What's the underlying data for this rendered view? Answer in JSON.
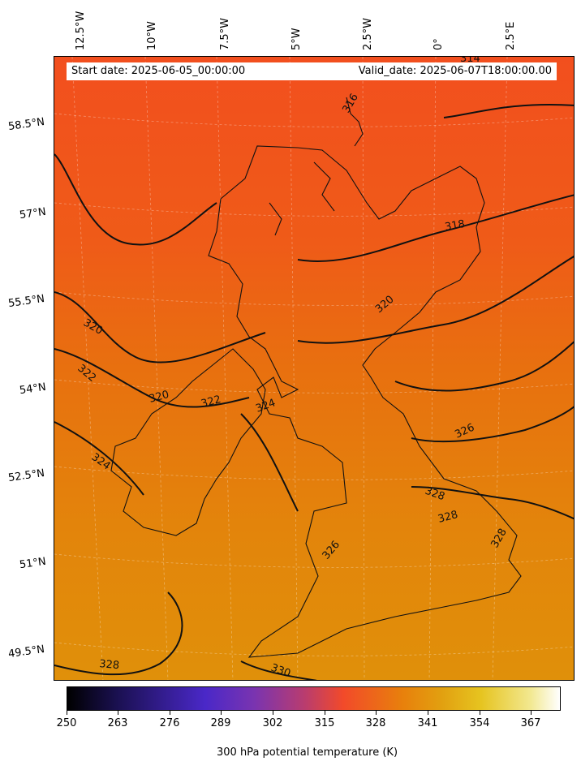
{
  "header": {
    "start_date": "Start date: 2025-06-05_00:00:00",
    "valid_date": "Valid_date: 2025-06-07T18:00:00.00"
  },
  "longitude_labels": [
    "12.5°W",
    "10°W",
    "7.5°W",
    "5°W",
    "2.5°W",
    "0°",
    "2.5°E"
  ],
  "latitude_labels": [
    "58.5°N",
    "57°N",
    "55.5°N",
    "54°N",
    "52.5°N",
    "51°N",
    "49.5°N"
  ],
  "contour_labels": [
    "314",
    "316",
    "318",
    "320",
    "320",
    "322",
    "322",
    "320",
    "324",
    "324",
    "326",
    "326",
    "328",
    "328",
    "328",
    "328",
    "330"
  ],
  "colorbar": {
    "ticks": [
      "250",
      "263",
      "276",
      "289",
      "302",
      "315",
      "328",
      "341",
      "354",
      "367"
    ],
    "title": "300 hPa potential temperature (K)"
  }
}
